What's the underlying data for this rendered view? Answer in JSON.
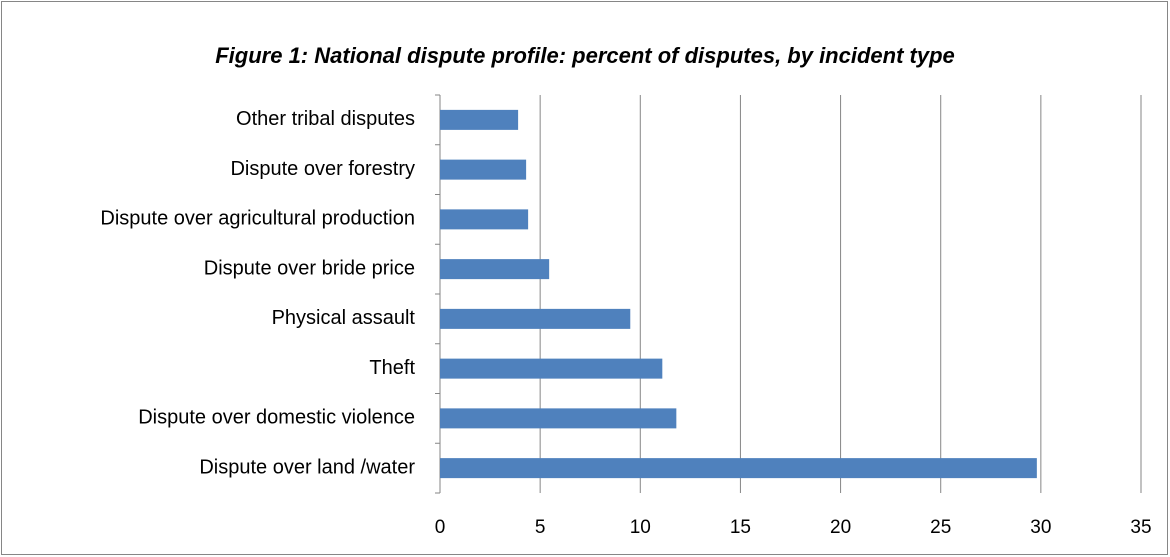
{
  "chart_data": {
    "type": "bar",
    "orientation": "horizontal",
    "title": "Figure 1: National dispute profile:  percent of disputes, by incident type",
    "categories": [
      "Other tribal disputes",
      "Dispute over forestry",
      "Dispute over agricultural production",
      "Dispute over bride price",
      "Physical assault",
      "Theft",
      "Dispute over domestic violence",
      "Dispute over land /water"
    ],
    "values": [
      3.9,
      4.3,
      4.4,
      5.45,
      9.5,
      11.1,
      11.8,
      29.8
    ],
    "color": "#4f81bd",
    "xlim": [
      0,
      35
    ],
    "xticks": [
      0,
      5,
      10,
      15,
      20,
      25,
      30,
      35
    ],
    "grid": true
  }
}
